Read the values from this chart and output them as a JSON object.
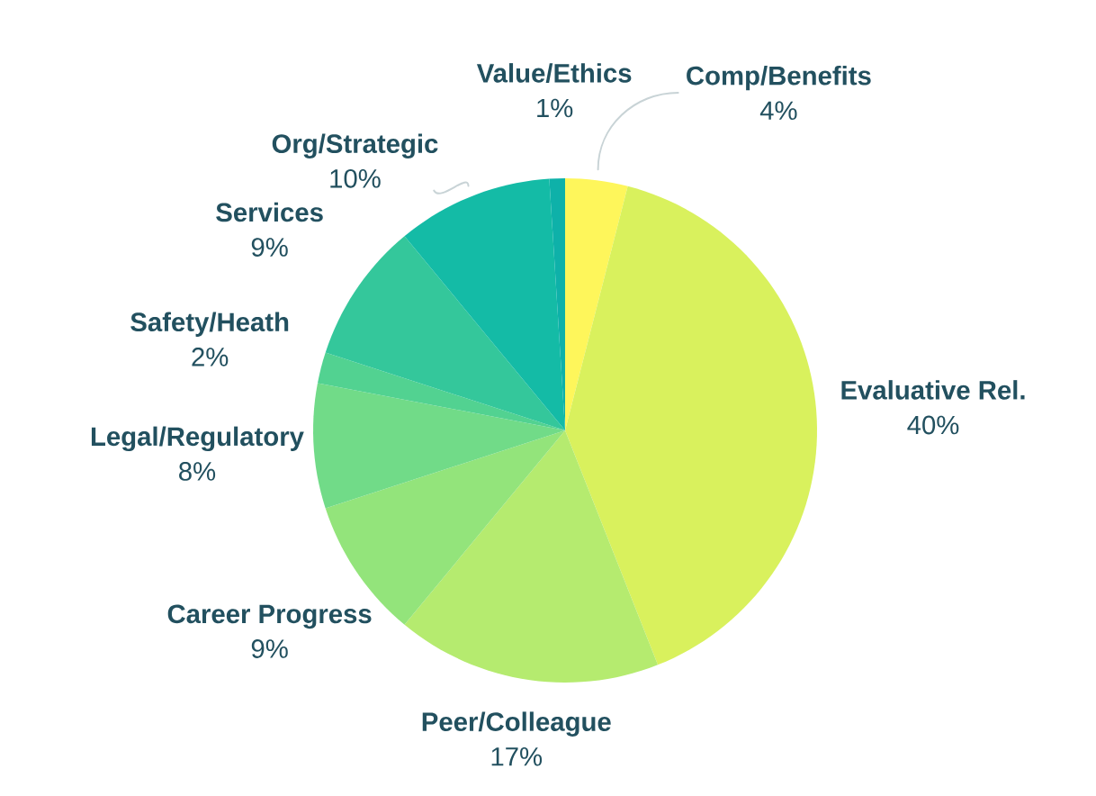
{
  "chart_data": {
    "type": "pie",
    "categories": [
      "Comp/Benefits",
      "Evaluative Rel.",
      "Peer/Colleague",
      "Career Progress",
      "Legal/Regulatory",
      "Safety/Heath",
      "Services",
      "Org/Strategic",
      "Value/Ethics"
    ],
    "values": [
      4,
      40,
      17,
      9,
      8,
      2,
      9,
      10,
      1
    ],
    "value_labels": [
      "4%",
      "40%",
      "17%",
      "9%",
      "8%",
      "2%",
      "9%",
      "10%",
      "1%"
    ],
    "colors": [
      "#fef65b",
      "#d9f15d",
      "#b5eb6f",
      "#93e47b",
      "#71db88",
      "#52d291",
      "#34c79b",
      "#14bba6",
      "#0eb1a9"
    ]
  }
}
